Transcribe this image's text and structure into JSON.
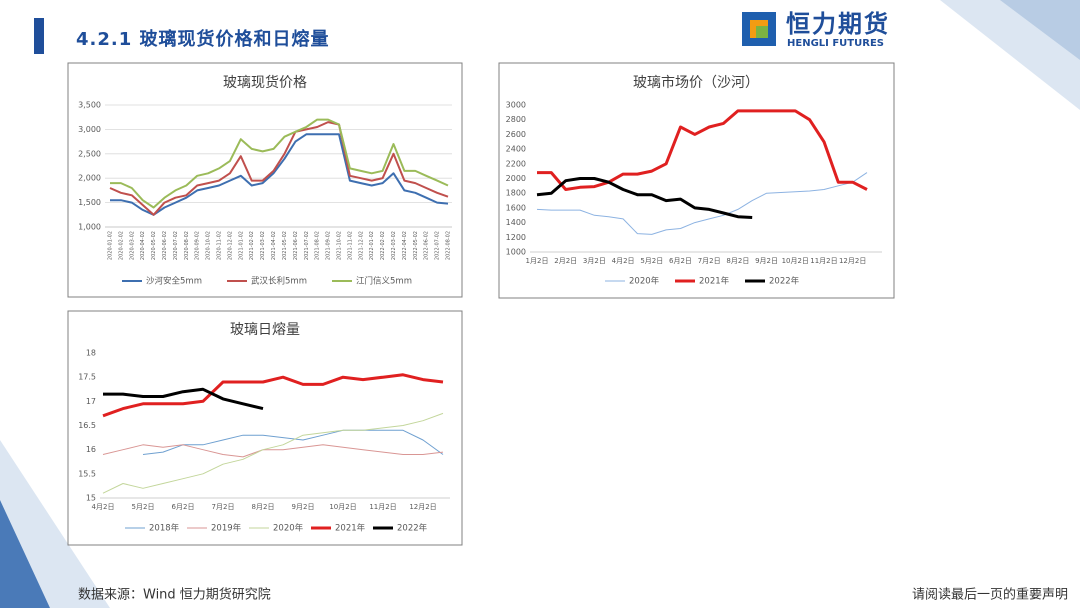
{
  "header": {
    "title": "4.2.1 玻璃现货价格和日熔量",
    "logo_cn": "恒力期货",
    "logo_en": "HENGLI FUTURES"
  },
  "footer": {
    "source": "数据来源：Wind  恒力期货研究院",
    "notice": "请阅读最后一页的重要声明"
  },
  "chart_data": [
    {
      "type": "line",
      "title": "玻璃现货价格",
      "grid": true,
      "categories": [
        "2020-01-02",
        "2020-02-02",
        "2020-03-02",
        "2020-04-02",
        "2020-05-02",
        "2020-06-02",
        "2020-07-02",
        "2020-08-02",
        "2020-09-02",
        "2020-10-02",
        "2020-11-02",
        "2020-12-02",
        "2021-01-02",
        "2021-02-02",
        "2021-03-02",
        "2021-04-02",
        "2021-05-02",
        "2021-06-02",
        "2021-07-02",
        "2021-08-02",
        "2021-09-02",
        "2021-10-02",
        "2021-11-02",
        "2021-12-02",
        "2022-01-02",
        "2022-02-02",
        "2022-03-02",
        "2022-04-02",
        "2022-05-02",
        "2022-06-02",
        "2022-07-02",
        "2022-08-02"
      ],
      "ylim": [
        1000,
        3500
      ],
      "yticks": [
        {
          "value": 1000,
          "label": "1,000"
        },
        {
          "value": 1500,
          "label": "1,500"
        },
        {
          "value": 2000,
          "label": "2,000"
        },
        {
          "value": 2500,
          "label": "2,500"
        },
        {
          "value": 3000,
          "label": "3,000"
        },
        {
          "value": 3500,
          "label": "3,500"
        }
      ],
      "series": [
        {
          "name": "沙河安全5mm",
          "color": "#3e6fb0",
          "width": 2,
          "values": [
            1550,
            1550,
            1500,
            1350,
            1250,
            1400,
            1500,
            1600,
            1750,
            1800,
            1850,
            1950,
            2050,
            1850,
            1900,
            2100,
            2400,
            2750,
            2900,
            2900,
            2900,
            2900,
            1950,
            1900,
            1850,
            1900,
            2100,
            1750,
            1700,
            1600,
            1500,
            1480
          ]
        },
        {
          "name": "武汉长利5mm",
          "color": "#c0504d",
          "width": 2,
          "values": [
            1800,
            1700,
            1650,
            1450,
            1250,
            1500,
            1600,
            1650,
            1850,
            1900,
            1950,
            2100,
            2450,
            1950,
            1950,
            2150,
            2500,
            2950,
            3000,
            3050,
            3150,
            3100,
            2050,
            2000,
            1950,
            2000,
            2500,
            1950,
            1900,
            1800,
            1700,
            1620
          ]
        },
        {
          "name": "江门信义5mm",
          "color": "#9bbb59",
          "width": 2,
          "values": [
            1900,
            1900,
            1800,
            1550,
            1400,
            1600,
            1750,
            1850,
            2050,
            2100,
            2200,
            2350,
            2800,
            2600,
            2550,
            2600,
            2850,
            2950,
            3050,
            3200,
            3200,
            3100,
            2200,
            2150,
            2100,
            2150,
            2700,
            2150,
            2150,
            2050,
            1950,
            1850
          ]
        }
      ]
    },
    {
      "type": "line",
      "title": "玻璃市场价（沙河）",
      "grid": false,
      "categories": [
        "1月2日",
        null,
        "2月2日",
        null,
        "3月2日",
        null,
        "4月2日",
        null,
        "5月2日",
        null,
        "6月2日",
        null,
        "7月2日",
        null,
        "8月2日",
        null,
        "9月2日",
        null,
        "10月2日",
        null,
        "11月2日",
        null,
        "12月2日",
        null
      ],
      "ylim": [
        1000,
        3000
      ],
      "yticks": [
        1000,
        1200,
        1400,
        1600,
        1800,
        2000,
        2200,
        2400,
        2600,
        2800,
        3000
      ],
      "series": [
        {
          "name": "2020年",
          "color": "#8db3e2",
          "width": 1,
          "values": [
            1580,
            1570,
            1570,
            1570,
            1500,
            1480,
            1450,
            1250,
            1240,
            1300,
            1320,
            1400,
            1450,
            1500,
            1580,
            1700,
            1800,
            1810,
            1820,
            1830,
            1850,
            1900,
            1950,
            2080
          ]
        },
        {
          "name": "2021年",
          "color": "#e02020",
          "width": 3,
          "values": [
            2080,
            2080,
            1850,
            1880,
            1890,
            1950,
            2060,
            2060,
            2100,
            2200,
            2700,
            2600,
            2700,
            2750,
            2920,
            2920,
            2920,
            2920,
            2920,
            2800,
            2500,
            1950,
            1950,
            1850
          ]
        },
        {
          "name": "2022年",
          "color": "#000000",
          "width": 3,
          "values": [
            1780,
            1800,
            1970,
            2000,
            2000,
            1950,
            1850,
            1780,
            1780,
            1700,
            1720,
            1600,
            1580,
            1530,
            1480,
            1470,
            null,
            null,
            null,
            null,
            null,
            null,
            null,
            null
          ]
        }
      ]
    },
    {
      "type": "line",
      "title": "玻璃日熔量",
      "grid": false,
      "categories": [
        "4月2日",
        null,
        "5月2日",
        null,
        "6月2日",
        null,
        "7月2日",
        null,
        "8月2日",
        null,
        "9月2日",
        null,
        "10月2日",
        null,
        "11月2日",
        null,
        "12月2日",
        null
      ],
      "ylim": [
        15,
        18
      ],
      "yticks": [
        15,
        15.5,
        16,
        16.5,
        17,
        17.5,
        18
      ],
      "series": [
        {
          "name": "2018年",
          "color": "#6fa0d0",
          "width": 1,
          "values": [
            null,
            null,
            15.9,
            15.95,
            16.1,
            16.1,
            16.2,
            16.3,
            16.3,
            16.25,
            16.2,
            16.3,
            16.4,
            16.4,
            16.4,
            16.4,
            16.2,
            15.9
          ]
        },
        {
          "name": "2019年",
          "color": "#d99694",
          "width": 1,
          "values": [
            15.9,
            16.0,
            16.1,
            16.05,
            16.1,
            16.0,
            15.9,
            15.85,
            16.0,
            16.0,
            16.05,
            16.1,
            16.05,
            16.0,
            15.95,
            15.9,
            15.9,
            15.95
          ]
        },
        {
          "name": "2020年",
          "color": "#c3d69b",
          "width": 1,
          "values": [
            15.1,
            15.3,
            15.2,
            15.3,
            15.4,
            15.5,
            15.7,
            15.8,
            16.0,
            16.1,
            16.3,
            16.35,
            16.4,
            16.4,
            16.45,
            16.5,
            16.6,
            16.75
          ]
        },
        {
          "name": "2021年",
          "color": "#e02020",
          "width": 3,
          "values": [
            16.7,
            16.85,
            16.95,
            16.95,
            16.95,
            17.0,
            17.4,
            17.4,
            17.4,
            17.5,
            17.35,
            17.35,
            17.5,
            17.45,
            17.5,
            17.55,
            17.45,
            17.4
          ]
        },
        {
          "name": "2022年",
          "color": "#000000",
          "width": 3,
          "values": [
            17.15,
            17.15,
            17.1,
            17.1,
            17.2,
            17.25,
            17.05,
            16.95,
            16.85,
            null,
            null,
            null,
            null,
            null,
            null,
            null,
            null,
            null
          ]
        }
      ]
    }
  ]
}
